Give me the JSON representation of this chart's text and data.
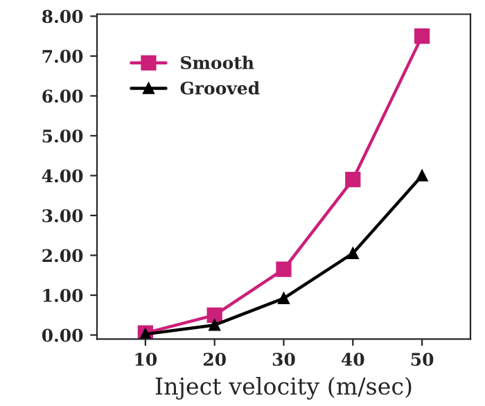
{
  "chart_data": {
    "type": "line",
    "xlabel": "Inject velocity (m/sec)",
    "x": [
      10,
      20,
      30,
      40,
      50
    ],
    "series": [
      {
        "name": "Smooth",
        "color": "#cc1f7a",
        "marker": "square",
        "values": [
          0.05,
          0.5,
          1.65,
          3.9,
          7.5
        ]
      },
      {
        "name": "Grooved",
        "color": "#000000",
        "marker": "triangle",
        "values": [
          0.02,
          0.25,
          0.92,
          2.05,
          4.0
        ]
      }
    ],
    "xlim": [
      3,
      57
    ],
    "ylim": [
      -0.1,
      8.05
    ],
    "xticks": [
      10,
      20,
      30,
      40,
      50
    ],
    "yticks": [
      {
        "value": 0,
        "label": "0.00"
      },
      {
        "value": 1,
        "label": "1.00"
      },
      {
        "value": 2,
        "label": "2.00"
      },
      {
        "value": 3,
        "label": "3.00"
      },
      {
        "value": 4,
        "label": "4.00"
      },
      {
        "value": 5,
        "label": "5.00"
      },
      {
        "value": 6,
        "label": "6.00"
      },
      {
        "value": 7,
        "label": "7.00"
      },
      {
        "value": 8,
        "label": "8.00"
      }
    ],
    "legend": "top left",
    "grid": false,
    "line_style": "solid"
  }
}
